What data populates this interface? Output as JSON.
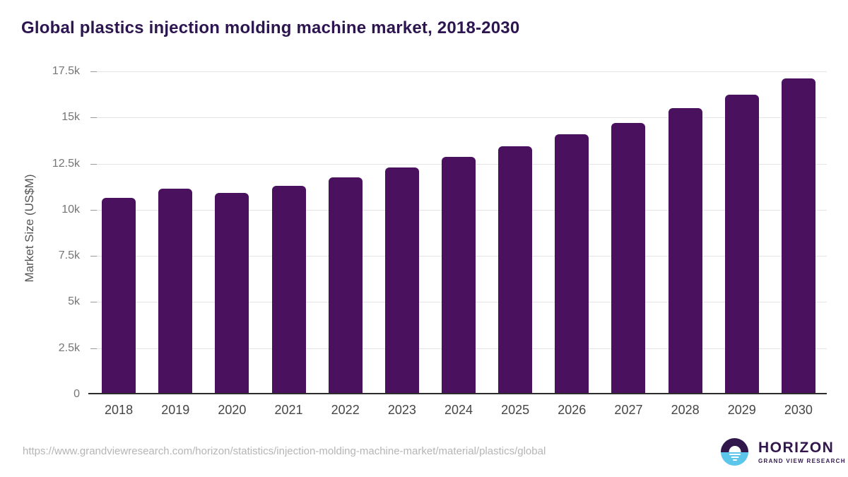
{
  "title": "Global plastics injection molding machine market, 2018-2030",
  "chart_data": {
    "type": "bar",
    "title": "Global plastics injection molding machine market, 2018-2030",
    "categories": [
      "2018",
      "2019",
      "2020",
      "2021",
      "2022",
      "2023",
      "2024",
      "2025",
      "2026",
      "2027",
      "2028",
      "2029",
      "2030"
    ],
    "values": [
      10650,
      11150,
      10900,
      11300,
      11750,
      12300,
      12850,
      13450,
      14100,
      14700,
      15500,
      16250,
      17100
    ],
    "xlabel": "",
    "ylabel": "Market Size (US$M)",
    "ylim": [
      0,
      17500
    ],
    "yticks": [
      0,
      2500,
      5000,
      7500,
      10000,
      12500,
      15000,
      17500
    ],
    "ytick_labels": [
      "0",
      "2.5k",
      "5k",
      "7.5k",
      "10k",
      "12.5k",
      "15k",
      "17.5k"
    ],
    "grid": true,
    "legend": null,
    "bar_color": "#4a115e",
    "gridline_color": "#e4e4e4",
    "axis_line_color": "#2d2d2d"
  },
  "footer": {
    "source_url": "https://www.grandviewresearch.com/horizon/statistics/injection-molding-machine-market/material/plastics/global",
    "logo": {
      "name": "HORIZON",
      "subtitle": "GRAND VIEW RESEARCH",
      "brand_purple": "#32174d",
      "brand_blue": "#5bc6ea"
    }
  },
  "colors": {
    "title_text": "#2d1650",
    "axis_label_text": "#555555",
    "tick_label_text": "#757575",
    "x_label_text": "#454545",
    "url_text": "#b5b5b5",
    "background": "#ffffff"
  }
}
